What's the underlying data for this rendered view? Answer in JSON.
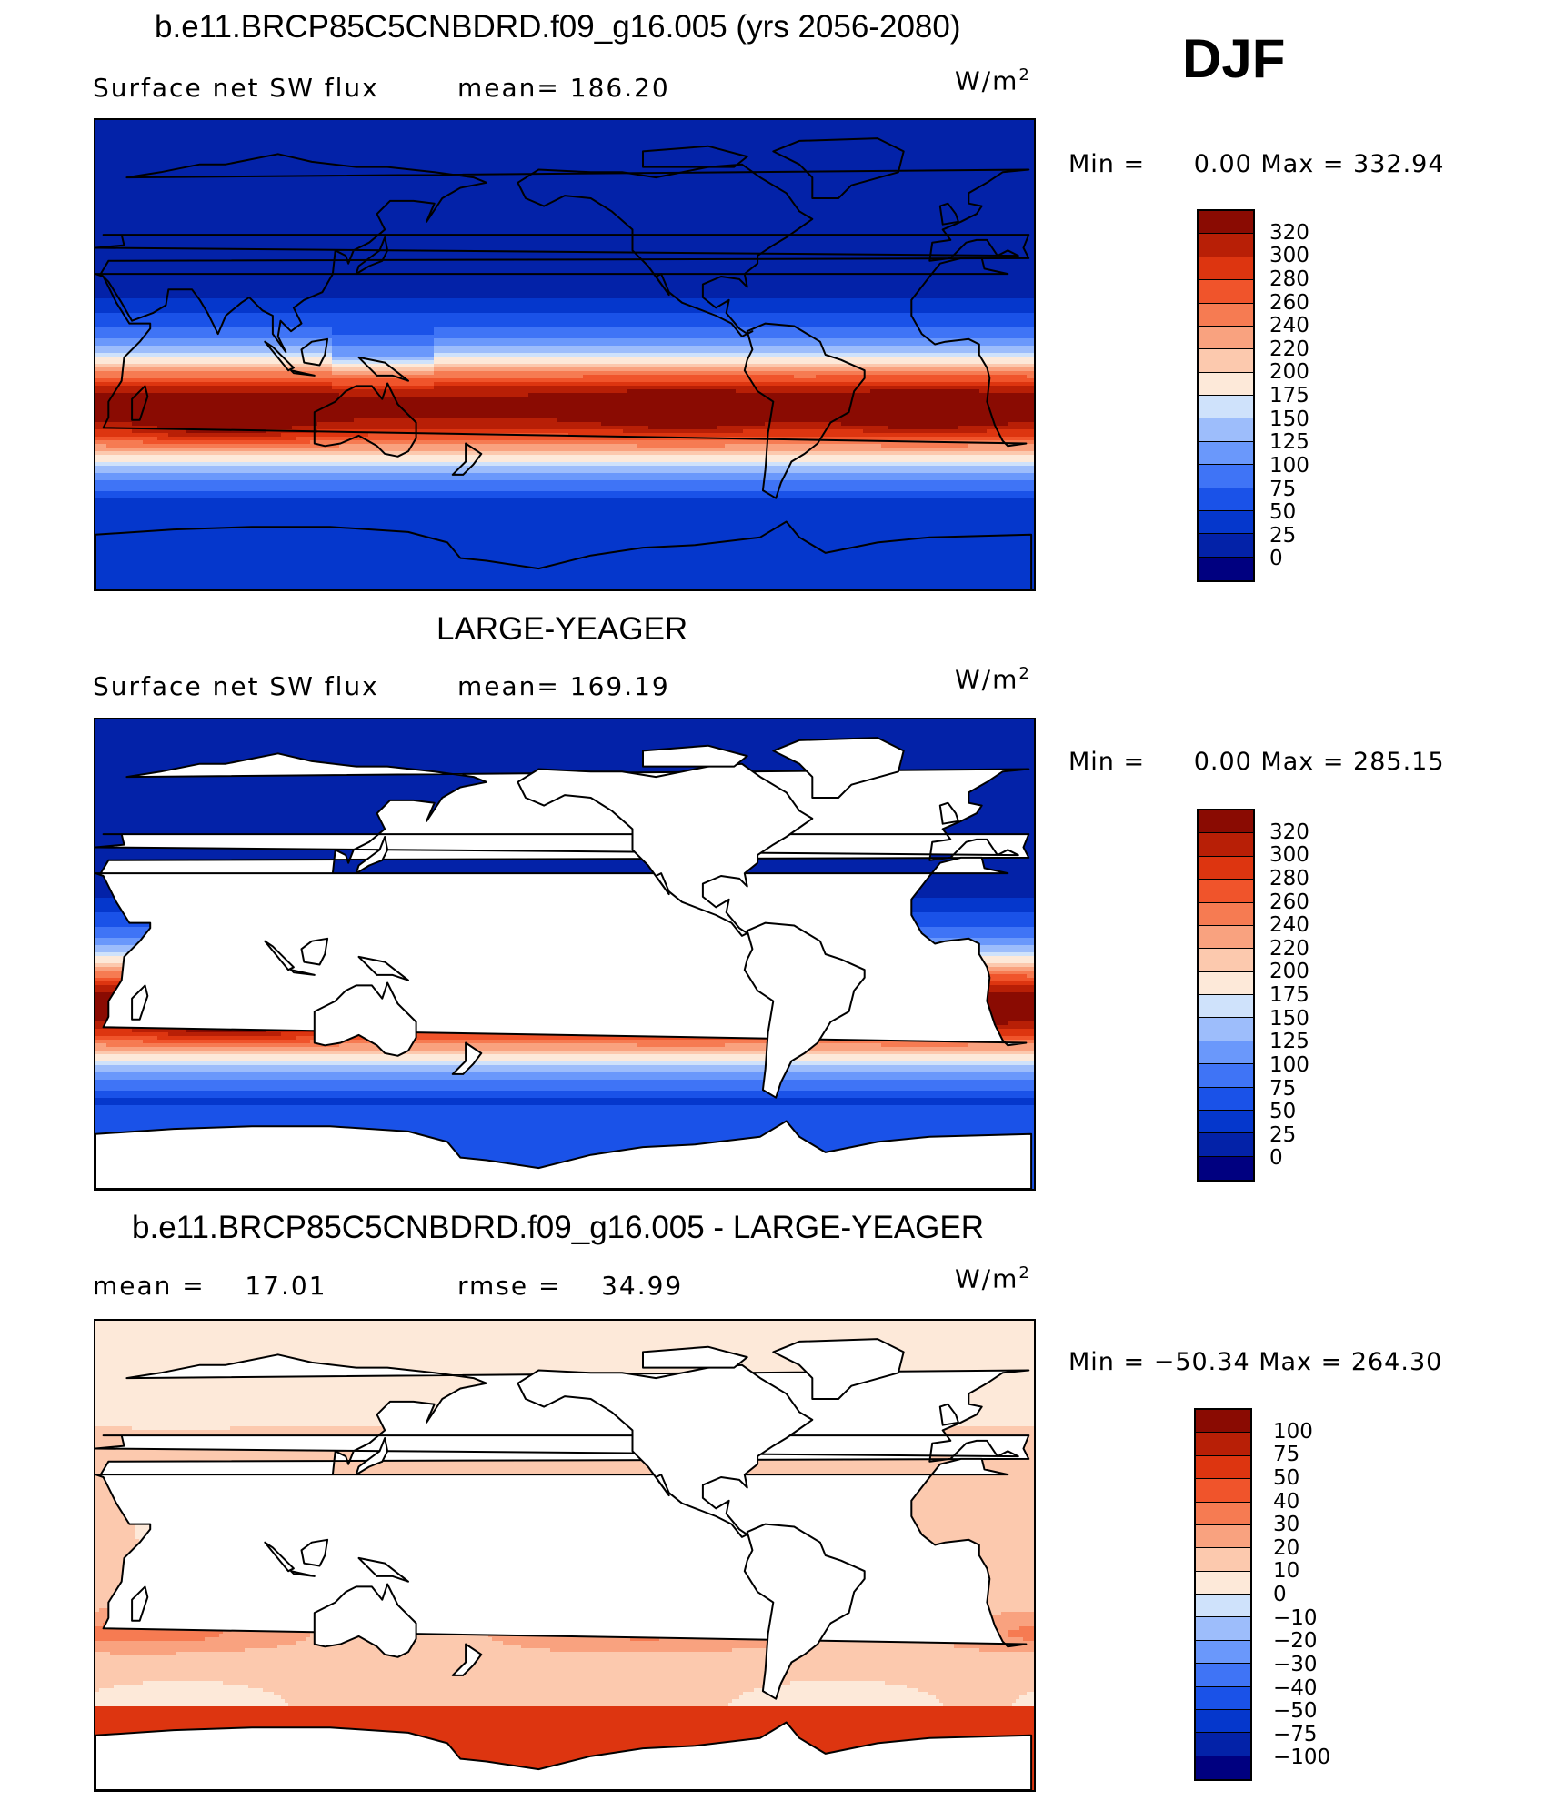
{
  "season": "DJF",
  "colors": {
    "abs_scale": [
      "#000080",
      "#0322a8",
      "#0537cc",
      "#1a52e8",
      "#3f74f6",
      "#6a98fb",
      "#9dbdfb",
      "#cfe2fb",
      "#fde9d9",
      "#fcc9ae",
      "#f9a27f",
      "#f67b52",
      "#f0542b",
      "#dd3510",
      "#b81f06",
      "#8a0b02"
    ],
    "land": "#ffffff",
    "coast": "#000000"
  },
  "panels": [
    {
      "id": "model",
      "title": "b.e11.BRCP85C5CNBDRD.f09_g16.005 (yrs 2056-2080)",
      "left_label": "Surface net SW flux",
      "mid_label": "mean= 186.20",
      "units": "W/m",
      "units_sup": "2",
      "min_label": "Min = ",
      "min_value": "0.00",
      "max_label": "Max = ",
      "max_value": "332.94",
      "colorbar_labels": [
        "320",
        "300",
        "280",
        "260",
        "240",
        "220",
        "200",
        "175",
        "150",
        "125",
        "100",
        "75",
        "50",
        "25",
        "0"
      ],
      "land_masked": false,
      "field_scale": "abs"
    },
    {
      "id": "obs",
      "title": "LARGE-YEAGER",
      "left_label": "Surface net SW flux",
      "mid_label": "mean= 169.19",
      "units": "W/m",
      "units_sup": "2",
      "min_label": "Min = ",
      "min_value": "0.00",
      "max_label": "Max = ",
      "max_value": "285.15",
      "colorbar_labels": [
        "320",
        "300",
        "280",
        "260",
        "240",
        "220",
        "200",
        "175",
        "150",
        "125",
        "100",
        "75",
        "50",
        "25",
        "0"
      ],
      "land_masked": true,
      "field_scale": "abs"
    },
    {
      "id": "diff",
      "title": "b.e11.BRCP85C5CNBDRD.f09_g16.005 - LARGE-YEAGER",
      "left_label": "mean =    17.01",
      "mid_label": "rmse =    34.99",
      "units": "W/m",
      "units_sup": "2",
      "min_label": "Min = ",
      "min_value": "−50.34",
      "max_label": "Max = ",
      "max_value": "264.30",
      "colorbar_labels": [
        "100",
        "75",
        "50",
        "40",
        "30",
        "20",
        "10",
        "0",
        "−10",
        "−20",
        "−30",
        "−40",
        "−50",
        "−75",
        "−100"
      ],
      "land_masked": true,
      "field_scale": "diff"
    }
  ]
}
